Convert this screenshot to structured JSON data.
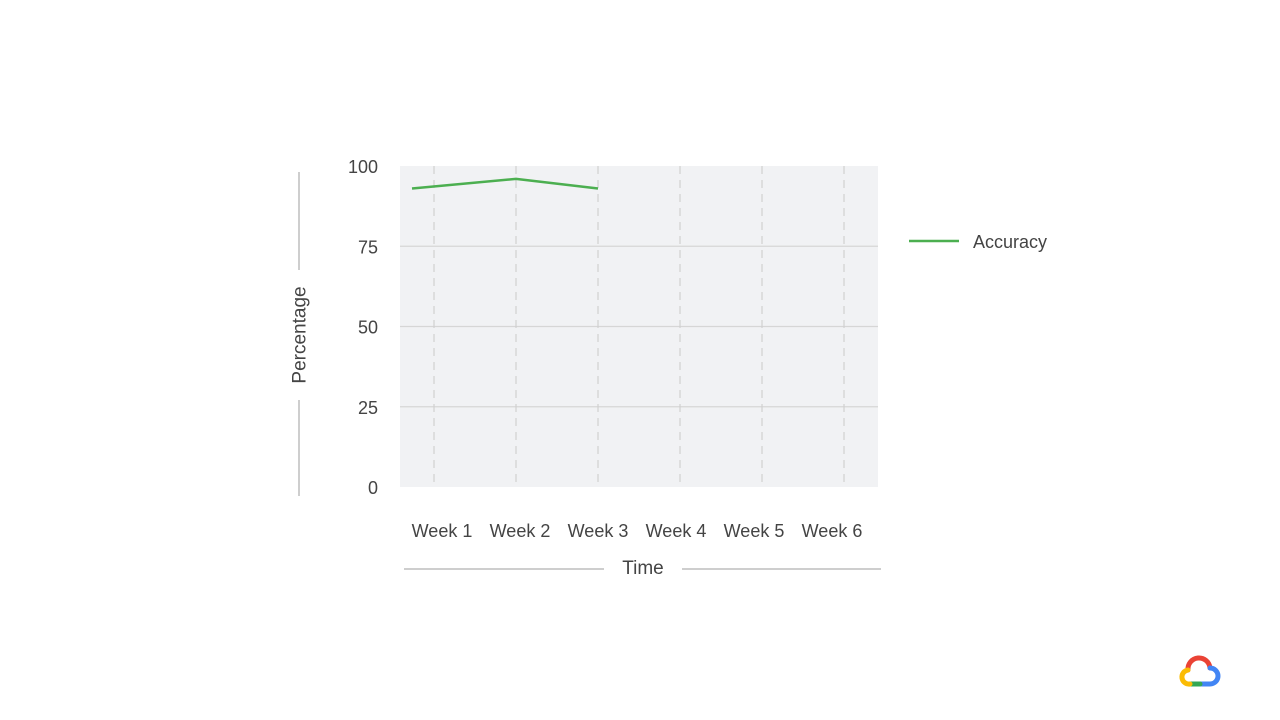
{
  "chart_data": {
    "type": "line",
    "categories": [
      "Week 1",
      "Week 2",
      "Week 3",
      "Week 4",
      "Week 5",
      "Week 6"
    ],
    "series": [
      {
        "name": "Accuracy",
        "color": "#4caf50",
        "values": [
          93,
          96,
          93,
          null,
          null,
          null
        ]
      }
    ],
    "xlabel": "Time",
    "ylabel": "Percentage",
    "ylim": [
      0,
      100
    ],
    "yticks": [
      "0",
      "25",
      "50",
      "75",
      "100"
    ],
    "grid": true,
    "legend_placement": "right"
  },
  "logo": {
    "icon": "google-cloud-logo-icon",
    "colors": [
      "#ea4335",
      "#fbbc05",
      "#34a853",
      "#4285f4"
    ]
  }
}
